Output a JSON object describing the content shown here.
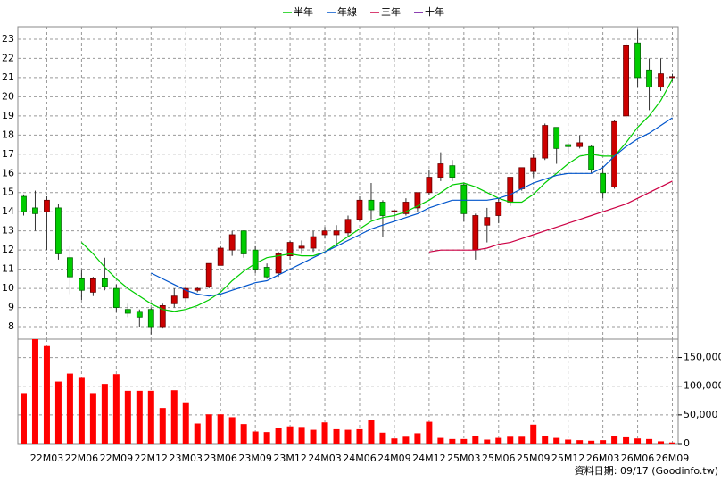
{
  "chart_data": [
    {
      "type": "candlestick",
      "categories": [
        null,
        null,
        "22M03",
        null,
        null,
        "22M06",
        null,
        null,
        "22M09",
        null,
        null,
        "22M12",
        null,
        null,
        "23M03",
        null,
        null,
        "23M06",
        null,
        null,
        "23M09",
        null,
        null,
        "23M12",
        null,
        null,
        "24M03",
        null,
        null,
        "24M06",
        null,
        null,
        "24M09",
        null,
        null,
        "24M12",
        null,
        null,
        "25M03",
        null,
        null,
        "25M06",
        null,
        null,
        "25M09",
        null,
        null,
        "25M12",
        null,
        null,
        "26M03",
        null,
        null,
        "26M06",
        null,
        null,
        "26M09"
      ],
      "open": [
        14.8,
        14.2,
        14.0,
        14.2,
        11.6,
        10.5,
        9.8,
        10.5,
        10.0,
        8.9,
        8.8,
        8.9,
        8.0,
        9.2,
        9.5,
        9.9,
        10.1,
        11.2,
        12.0,
        13.0,
        12.0,
        11.1,
        10.8,
        11.7,
        12.1,
        12.1,
        12.8,
        12.8,
        12.9,
        13.6,
        14.6,
        14.5,
        14.0,
        13.9,
        14.2,
        15.0,
        15.8,
        16.4,
        15.4,
        12.0,
        13.3,
        13.8,
        14.5,
        15.2,
        16.1,
        16.8,
        18.4,
        17.5,
        17.4,
        17.4,
        16.0,
        15.3,
        19.0,
        22.8,
        21.4,
        20.5,
        21.0
      ],
      "high": [
        14.9,
        15.1,
        14.8,
        14.4,
        12.2,
        11.0,
        10.6,
        11.6,
        10.2,
        9.2,
        8.9,
        9.0,
        9.2,
        10.0,
        10.1,
        10.1,
        11.3,
        12.2,
        13.0,
        13.0,
        12.2,
        11.3,
        11.9,
        12.5,
        12.5,
        13.0,
        13.2,
        13.3,
        13.8,
        14.8,
        15.5,
        14.6,
        14.1,
        14.7,
        15.0,
        16.2,
        17.1,
        16.7,
        15.5,
        13.9,
        14.2,
        14.7,
        15.8,
        16.3,
        17.0,
        18.6,
        18.4,
        17.6,
        18.0,
        17.5,
        16.4,
        18.8,
        22.8,
        23.5,
        22.0,
        22.0,
        21.2
      ],
      "low": [
        13.8,
        13.0,
        12.0,
        11.5,
        9.7,
        9.4,
        9.6,
        9.9,
        8.8,
        8.5,
        8.0,
        7.6,
        7.9,
        9.0,
        9.3,
        9.8,
        10.0,
        11.2,
        11.7,
        11.6,
        10.8,
        10.5,
        10.6,
        11.5,
        11.8,
        11.9,
        12.6,
        12.2,
        12.7,
        13.5,
        13.6,
        12.7,
        13.6,
        13.8,
        14.0,
        14.9,
        15.6,
        15.6,
        13.5,
        11.5,
        12.4,
        13.4,
        14.3,
        15.1,
        15.8,
        16.7,
        16.5,
        17.0,
        17.3,
        16.0,
        14.7,
        15.2,
        18.9,
        20.5,
        19.3,
        20.3,
        20.8
      ],
      "close": [
        14.0,
        13.9,
        14.6,
        11.8,
        10.6,
        9.9,
        10.5,
        10.1,
        9.0,
        8.7,
        8.5,
        8.0,
        9.1,
        9.6,
        10.0,
        10.0,
        11.3,
        12.1,
        12.8,
        11.8,
        11.0,
        10.6,
        11.8,
        12.4,
        12.2,
        12.7,
        13.0,
        13.0,
        13.6,
        14.6,
        14.1,
        13.8,
        14.05,
        14.5,
        15.0,
        15.8,
        16.5,
        15.8,
        13.9,
        13.8,
        13.7,
        14.5,
        15.8,
        16.3,
        16.8,
        18.5,
        17.3,
        17.4,
        17.6,
        16.2,
        15.0,
        18.7,
        22.7,
        21.0,
        20.5,
        21.2,
        21.05
      ],
      "up_color": "#cc0000",
      "down_color": "#00cc00",
      "series": [
        {
          "name": "半年",
          "color": "#00cc00",
          "values": [
            null,
            null,
            null,
            null,
            null,
            12.4,
            11.8,
            11.1,
            10.5,
            10.0,
            9.6,
            9.2,
            8.9,
            8.8,
            8.9,
            9.1,
            9.4,
            9.8,
            10.4,
            10.9,
            11.3,
            11.6,
            11.7,
            11.8,
            11.7,
            11.7,
            11.9,
            12.3,
            12.7,
            13.1,
            13.5,
            13.7,
            13.8,
            14.0,
            14.3,
            14.6,
            15.0,
            15.4,
            15.5,
            15.3,
            15.0,
            14.7,
            14.5,
            14.5,
            14.9,
            15.5,
            16.0,
            16.5,
            16.9,
            17.0,
            16.9,
            16.9,
            17.6,
            18.4,
            19.0,
            19.8,
            20.9
          ]
        },
        {
          "name": "年線",
          "color": "#0055cc",
          "values": [
            null,
            null,
            null,
            null,
            null,
            null,
            null,
            null,
            null,
            null,
            null,
            10.8,
            10.5,
            10.2,
            9.9,
            9.7,
            9.6,
            9.7,
            9.9,
            10.1,
            10.3,
            10.4,
            10.7,
            11.0,
            11.3,
            11.6,
            11.9,
            12.2,
            12.5,
            12.8,
            13.1,
            13.3,
            13.5,
            13.7,
            13.9,
            14.2,
            14.4,
            14.6,
            14.6,
            14.6,
            14.6,
            14.7,
            14.9,
            15.2,
            15.5,
            15.7,
            15.9,
            16.0,
            16.0,
            16.0,
            16.3,
            16.9,
            17.4,
            17.8,
            18.1,
            18.5,
            18.9
          ]
        },
        {
          "name": "三年",
          "color": "#cc0044",
          "values": [
            null,
            null,
            null,
            null,
            null,
            null,
            null,
            null,
            null,
            null,
            null,
            null,
            null,
            null,
            null,
            null,
            null,
            null,
            null,
            null,
            null,
            null,
            null,
            null,
            null,
            null,
            null,
            null,
            null,
            null,
            null,
            null,
            null,
            null,
            null,
            11.9,
            12.0,
            12.0,
            12.0,
            12.0,
            12.1,
            12.3,
            12.4,
            12.6,
            12.8,
            13.0,
            13.2,
            13.4,
            13.6,
            13.8,
            14.0,
            14.2,
            14.4,
            14.7,
            15.0,
            15.3,
            15.6
          ]
        },
        {
          "name": "十年",
          "color": "#660099",
          "values": [
            null,
            null,
            null,
            null,
            null,
            null,
            null,
            null,
            null,
            null,
            null,
            null,
            null,
            null,
            null,
            null,
            null,
            null,
            null,
            null,
            null,
            null,
            null,
            null,
            null,
            null,
            null,
            null,
            null,
            null,
            null,
            null,
            null,
            null,
            null,
            null,
            null,
            null,
            null,
            null,
            null,
            null,
            null,
            null,
            null,
            null,
            null,
            null,
            null,
            null,
            null,
            null,
            null,
            null,
            null,
            null,
            null
          ]
        }
      ],
      "ylim": [
        7.35,
        23.65
      ],
      "yticks": [
        8,
        9,
        10,
        11,
        12,
        13,
        14,
        15,
        16,
        17,
        18,
        19,
        20,
        21,
        22,
        23
      ],
      "grid": true
    },
    {
      "type": "bar",
      "values": [
        88000,
        182000,
        170000,
        108000,
        122000,
        116000,
        88000,
        104000,
        121000,
        92000,
        92000,
        92000,
        62000,
        93000,
        72000,
        35000,
        51000,
        51000,
        46000,
        34000,
        21000,
        20000,
        28000,
        30000,
        29000,
        24000,
        37000,
        25000,
        24000,
        25000,
        42000,
        19000,
        9000,
        12000,
        18000,
        38000,
        10000,
        8000,
        8000,
        14000,
        7000,
        10000,
        12000,
        12000,
        33000,
        13000,
        10000,
        7000,
        6000,
        5000,
        6000,
        14000,
        11000,
        9000,
        8000,
        4000,
        2000
      ],
      "color": "#ff0000",
      "ylim": [
        0,
        182000
      ],
      "yticks": [
        0,
        {
          "value": 50000,
          "label": "50,000"
        },
        {
          "value": 100000,
          "label": "100,000"
        },
        {
          "value": 150000,
          "label": "150,000"
        }
      ],
      "grid": true,
      "footnote": "資料日期: 09/17 (Goodinfo.tw)"
    }
  ]
}
